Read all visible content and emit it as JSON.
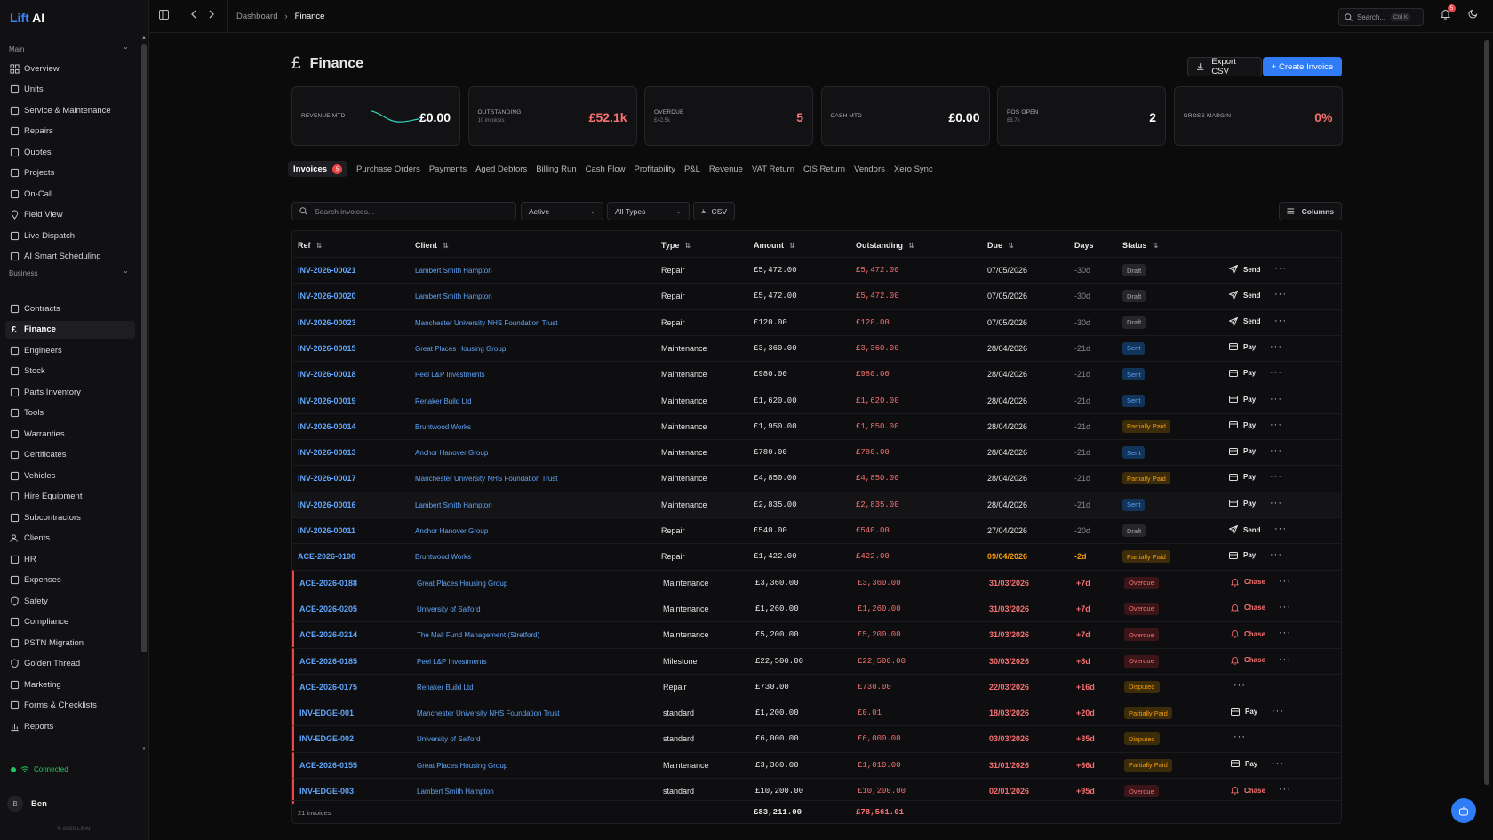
{
  "app": {
    "brand_a": "Lift",
    "brand_b": "AI"
  },
  "sidebar": {
    "main_label": "Main",
    "business_label": "Business",
    "main_items": [
      {
        "label": "Overview",
        "icon": "grid-icon"
      },
      {
        "label": "Units",
        "icon": "building-icon"
      },
      {
        "label": "Service & Maintenance",
        "icon": "calendar-icon"
      },
      {
        "label": "Repairs",
        "icon": "wrench-icon"
      },
      {
        "label": "Quotes",
        "icon": "file-icon"
      },
      {
        "label": "Projects",
        "icon": "folder-icon"
      },
      {
        "label": "On-Call",
        "icon": "phone-icon"
      },
      {
        "label": "Field View",
        "icon": "map-pin-icon"
      },
      {
        "label": "Live Dispatch",
        "icon": "radio-icon"
      },
      {
        "label": "AI Smart Scheduling",
        "icon": "sparkle-icon"
      }
    ],
    "business_items": [
      {
        "label": "Contracts",
        "icon": "contract-icon"
      },
      {
        "label": "Finance",
        "icon": "pound-icon",
        "active": true
      },
      {
        "label": "Engineers",
        "icon": "hardhat-icon"
      },
      {
        "label": "Stock",
        "icon": "box-icon"
      },
      {
        "label": "Parts Inventory",
        "icon": "package-icon"
      },
      {
        "label": "Tools",
        "icon": "tool-icon"
      },
      {
        "label": "Warranties",
        "icon": "shield-check-icon"
      },
      {
        "label": "Certificates",
        "icon": "award-icon"
      },
      {
        "label": "Vehicles",
        "icon": "car-icon"
      },
      {
        "label": "Hire Equipment",
        "icon": "truck-icon"
      },
      {
        "label": "Subcontractors",
        "icon": "handshake-icon"
      },
      {
        "label": "Clients",
        "icon": "users-icon"
      },
      {
        "label": "HR",
        "icon": "user-cog-icon"
      },
      {
        "label": "Expenses",
        "icon": "receipt-icon"
      },
      {
        "label": "Safety",
        "icon": "shield-icon"
      },
      {
        "label": "Compliance",
        "icon": "check-circle-icon"
      },
      {
        "label": "PSTN Migration",
        "icon": "phone-icon"
      },
      {
        "label": "Golden Thread",
        "icon": "shield-icon"
      },
      {
        "label": "Marketing",
        "icon": "megaphone-icon"
      },
      {
        "label": "Forms & Checklists",
        "icon": "clipboard-icon"
      },
      {
        "label": "Reports",
        "icon": "bar-chart-icon"
      }
    ],
    "status": "Connected",
    "user_initial": "B",
    "user_name": "Ben",
    "copyright": "© 2026 LiftAI"
  },
  "topbar": {
    "crumb_root": "Dashboard",
    "crumb_current": "Finance",
    "search_placeholder": "Search...",
    "search_kbd": "Ctrl K",
    "notif_count": "5"
  },
  "page": {
    "title": "Finance",
    "export_label": "Export CSV",
    "create_label": "+ Create Invoice"
  },
  "kpis": [
    {
      "label": "REVENUE MTD",
      "sub": "",
      "value": "£0.00",
      "red": false
    },
    {
      "label": "OUTSTANDING",
      "sub": "10 invoices",
      "value": "£52.1k",
      "red": true
    },
    {
      "label": "OVERDUE",
      "sub": "£42.5k",
      "value": "5",
      "red": true
    },
    {
      "label": "CASH MTD",
      "sub": "",
      "value": "£0.00",
      "red": false
    },
    {
      "label": "POS OPEN",
      "sub": "£8.7k",
      "value": "2",
      "red": false
    },
    {
      "label": "GROSS MARGIN",
      "sub": "",
      "value": "0%",
      "red": true
    }
  ],
  "tabs": [
    "Invoices",
    "Purchase Orders",
    "Payments",
    "Aged Debtors",
    "Billing Run",
    "Cash Flow",
    "Profitability",
    "P&L",
    "Revenue",
    "VAT Return",
    "CIS Return",
    "Vendors",
    "Xero Sync"
  ],
  "tab_badge": "5",
  "filters": {
    "search_placeholder": "Search invoices...",
    "status": "Active",
    "type": "All Types",
    "csv_label": "CSV",
    "columns_label": "Columns"
  },
  "table": {
    "headers": [
      "Ref",
      "Client",
      "Type",
      "Amount",
      "Outstanding",
      "Due",
      "Days",
      "Status"
    ],
    "rows": [
      {
        "ref": "INV-2026-00021",
        "client": "Lambert Smith Hampton",
        "type": "Repair",
        "amount": "£5,472.00",
        "outstanding": "£5,472.00",
        "due": "07/05/2026",
        "days": "-30d",
        "status": "Draft",
        "action": "Send"
      },
      {
        "ref": "INV-2026-00020",
        "client": "Lambert Smith Hampton",
        "type": "Repair",
        "amount": "£5,472.00",
        "outstanding": "£5,472.00",
        "due": "07/05/2026",
        "days": "-30d",
        "status": "Draft",
        "action": "Send"
      },
      {
        "ref": "INV-2026-00023",
        "client": "Manchester University NHS Foundation Trust",
        "type": "Repair",
        "amount": "£120.00",
        "outstanding": "£120.00",
        "due": "07/05/2026",
        "days": "-30d",
        "status": "Draft",
        "action": "Send"
      },
      {
        "ref": "INV-2026-00015",
        "client": "Great Places Housing Group",
        "type": "Maintenance",
        "amount": "£3,360.00",
        "outstanding": "£3,360.00",
        "due": "28/04/2026",
        "days": "-21d",
        "status": "Sent",
        "action": "Pay"
      },
      {
        "ref": "INV-2026-00018",
        "client": "Peel L&P Investments",
        "type": "Maintenance",
        "amount": "£980.00",
        "outstanding": "£980.00",
        "due": "28/04/2026",
        "days": "-21d",
        "status": "Sent",
        "action": "Pay"
      },
      {
        "ref": "INV-2026-00019",
        "client": "Renaker Build Ltd",
        "type": "Maintenance",
        "amount": "£1,620.00",
        "outstanding": "£1,620.00",
        "due": "28/04/2026",
        "days": "-21d",
        "status": "Sent",
        "action": "Pay"
      },
      {
        "ref": "INV-2026-00014",
        "client": "Bruntwood Works",
        "type": "Maintenance",
        "amount": "£1,950.00",
        "outstanding": "£1,850.00",
        "due": "28/04/2026",
        "days": "-21d",
        "status": "Partially Paid",
        "action": "Pay"
      },
      {
        "ref": "INV-2026-00013",
        "client": "Anchor Hanover Group",
        "type": "Maintenance",
        "amount": "£780.00",
        "outstanding": "£780.00",
        "due": "28/04/2026",
        "days": "-21d",
        "status": "Sent",
        "action": "Pay"
      },
      {
        "ref": "INV-2026-00017",
        "client": "Manchester University NHS Foundation Trust",
        "type": "Maintenance",
        "amount": "£4,850.00",
        "outstanding": "£4,850.00",
        "due": "28/04/2026",
        "days": "-21d",
        "status": "Partially Paid",
        "action": "Pay"
      },
      {
        "ref": "INV-2026-00016",
        "client": "Lambert Smith Hampton",
        "type": "Maintenance",
        "amount": "£2,835.00",
        "outstanding": "£2,835.00",
        "due": "28/04/2026",
        "days": "-21d",
        "status": "Sent",
        "action": "Pay"
      },
      {
        "ref": "INV-2026-00011",
        "client": "Anchor Hanover Group",
        "type": "Repair",
        "amount": "£540.00",
        "outstanding": "£540.00",
        "due": "27/04/2026",
        "days": "-20d",
        "status": "Draft",
        "action": "Send"
      },
      {
        "ref": "ACE-2026-0190",
        "client": "Bruntwood Works",
        "type": "Repair",
        "amount": "£1,422.00",
        "outstanding": "£422.00",
        "due": "09/04/2026",
        "days": "-2d",
        "status": "Partially Paid",
        "action": "Pay",
        "due_style": "amb"
      },
      {
        "ref": "ACE-2026-0188",
        "client": "Great Places Housing Group",
        "type": "Maintenance",
        "amount": "£3,360.00",
        "outstanding": "£3,360.00",
        "due": "31/03/2026",
        "days": "+7d",
        "status": "Overdue",
        "action": "Chase",
        "due_style": "red"
      },
      {
        "ref": "ACE-2026-0205",
        "client": "University of Salford",
        "type": "Maintenance",
        "amount": "£1,260.00",
        "outstanding": "£1,260.00",
        "due": "31/03/2026",
        "days": "+7d",
        "status": "Overdue",
        "action": "Chase",
        "due_style": "red"
      },
      {
        "ref": "ACE-2026-0214",
        "client": "The Mall Fund Management (Stretford)",
        "type": "Maintenance",
        "amount": "£5,200.00",
        "outstanding": "£5,200.00",
        "due": "31/03/2026",
        "days": "+7d",
        "status": "Overdue",
        "action": "Chase",
        "due_style": "red"
      },
      {
        "ref": "ACE-2026-0185",
        "client": "Peel L&P Investments",
        "type": "Milestone",
        "amount": "£22,500.00",
        "outstanding": "£22,500.00",
        "due": "30/03/2026",
        "days": "+8d",
        "status": "Overdue",
        "action": "Chase",
        "due_style": "red"
      },
      {
        "ref": "ACE-2026-0175",
        "client": "Renaker Build Ltd",
        "type": "Repair",
        "amount": "£730.00",
        "outstanding": "£730.00",
        "due": "22/03/2026",
        "days": "+16d",
        "status": "Disputed",
        "action": "",
        "due_style": "red"
      },
      {
        "ref": "INV-EDGE-001",
        "client": "Manchester University NHS Foundation Trust",
        "type": "standard",
        "amount": "£1,200.00",
        "outstanding": "£0.01",
        "due": "18/03/2026",
        "days": "+20d",
        "status": "Partially Paid",
        "action": "Pay",
        "due_style": "red"
      },
      {
        "ref": "INV-EDGE-002",
        "client": "University of Salford",
        "type": "standard",
        "amount": "£6,000.00",
        "outstanding": "£6,000.00",
        "due": "03/03/2026",
        "days": "+35d",
        "status": "Disputed",
        "action": "",
        "due_style": "red"
      },
      {
        "ref": "ACE-2026-0155",
        "client": "Great Places Housing Group",
        "type": "Maintenance",
        "amount": "£3,360.00",
        "outstanding": "£1,010.00",
        "due": "31/01/2026",
        "days": "+66d",
        "status": "Partially Paid",
        "action": "Pay",
        "due_style": "red"
      },
      {
        "ref": "INV-EDGE-003",
        "client": "Lambert Smith Hampton",
        "type": "standard",
        "amount": "£10,200.00",
        "outstanding": "£10,200.00",
        "due": "02/01/2026",
        "days": "+95d",
        "status": "Overdue",
        "action": "Chase",
        "due_style": "red"
      }
    ],
    "footer_count": "21 invoices",
    "footer_amount": "£83,211.00",
    "footer_outstanding": "£78,561.01"
  },
  "colors": {
    "accent": "#2f7cf6",
    "danger": "#f87171",
    "warning": "#f59e0b",
    "success": "#22c55e"
  }
}
